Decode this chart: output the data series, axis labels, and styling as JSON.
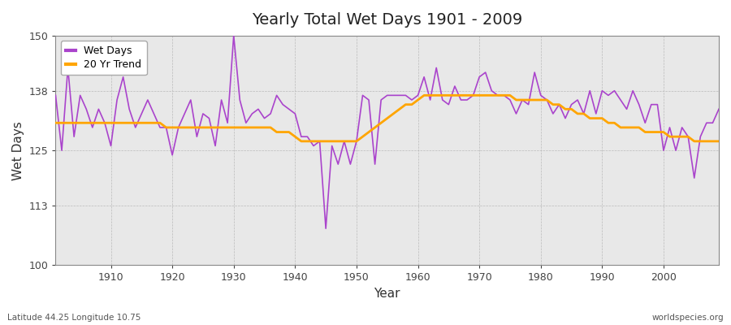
{
  "title": "Yearly Total Wet Days 1901 - 2009",
  "xlabel": "Year",
  "ylabel": "Wet Days",
  "subtitle_left": "Latitude 44.25 Longitude 10.75",
  "subtitle_right": "worldspecies.org",
  "ylim": [
    100,
    150
  ],
  "xlim": [
    1901,
    2009
  ],
  "yticks": [
    100,
    113,
    125,
    138,
    150
  ],
  "xticks": [
    1910,
    1920,
    1930,
    1940,
    1950,
    1960,
    1970,
    1980,
    1990,
    2000
  ],
  "wet_days_color": "#AA44CC",
  "trend_color": "#FFA500",
  "bg_color": "#E8E8E8",
  "outer_bg": "#FFFFFF",
  "years": [
    1901,
    1902,
    1903,
    1904,
    1905,
    1906,
    1907,
    1908,
    1909,
    1910,
    1911,
    1912,
    1913,
    1914,
    1915,
    1916,
    1917,
    1918,
    1919,
    1920,
    1921,
    1922,
    1923,
    1924,
    1925,
    1926,
    1927,
    1928,
    1929,
    1930,
    1931,
    1932,
    1933,
    1934,
    1935,
    1936,
    1937,
    1938,
    1939,
    1940,
    1941,
    1942,
    1943,
    1944,
    1945,
    1946,
    1947,
    1948,
    1949,
    1950,
    1951,
    1952,
    1953,
    1954,
    1955,
    1956,
    1957,
    1958,
    1959,
    1960,
    1961,
    1962,
    1963,
    1964,
    1965,
    1966,
    1967,
    1968,
    1969,
    1970,
    1971,
    1972,
    1973,
    1974,
    1975,
    1976,
    1977,
    1978,
    1979,
    1980,
    1981,
    1982,
    1983,
    1984,
    1985,
    1986,
    1987,
    1988,
    1989,
    1990,
    1991,
    1992,
    1993,
    1994,
    1995,
    1996,
    1997,
    1998,
    1999,
    2000,
    2001,
    2002,
    2003,
    2004,
    2005,
    2006,
    2007,
    2008,
    2009
  ],
  "wet_days": [
    137,
    125,
    143,
    128,
    137,
    134,
    130,
    134,
    131,
    126,
    136,
    141,
    134,
    130,
    133,
    136,
    133,
    130,
    130,
    124,
    130,
    133,
    136,
    128,
    133,
    132,
    126,
    136,
    131,
    150,
    136,
    131,
    133,
    134,
    132,
    133,
    137,
    135,
    134,
    133,
    128,
    128,
    126,
    127,
    108,
    126,
    122,
    127,
    122,
    127,
    137,
    136,
    122,
    136,
    137,
    137,
    137,
    137,
    136,
    137,
    141,
    136,
    143,
    136,
    135,
    139,
    136,
    136,
    137,
    141,
    142,
    138,
    137,
    137,
    136,
    133,
    136,
    135,
    142,
    137,
    136,
    133,
    135,
    132,
    135,
    136,
    133,
    138,
    133,
    138,
    137,
    138,
    136,
    134,
    138,
    135,
    131,
    135,
    135,
    125,
    130,
    125,
    130,
    128,
    119,
    128,
    131,
    131,
    134
  ],
  "trend": [
    131,
    131,
    131,
    131,
    131,
    131,
    131,
    131,
    131,
    131,
    131,
    131,
    131,
    131,
    131,
    131,
    131,
    131,
    130,
    130,
    130,
    130,
    130,
    130,
    130,
    130,
    130,
    130,
    130,
    130,
    130,
    130,
    130,
    130,
    130,
    130,
    129,
    129,
    129,
    128,
    127,
    127,
    127,
    127,
    127,
    127,
    127,
    127,
    127,
    127,
    128,
    129,
    130,
    131,
    132,
    133,
    134,
    135,
    135,
    136,
    137,
    137,
    137,
    137,
    137,
    137,
    137,
    137,
    137,
    137,
    137,
    137,
    137,
    137,
    137,
    136,
    136,
    136,
    136,
    136,
    136,
    135,
    135,
    134,
    134,
    133,
    133,
    132,
    132,
    132,
    131,
    131,
    130,
    130,
    130,
    130,
    129,
    129,
    129,
    129,
    128,
    128,
    128,
    128,
    127,
    127,
    127,
    127,
    127
  ]
}
